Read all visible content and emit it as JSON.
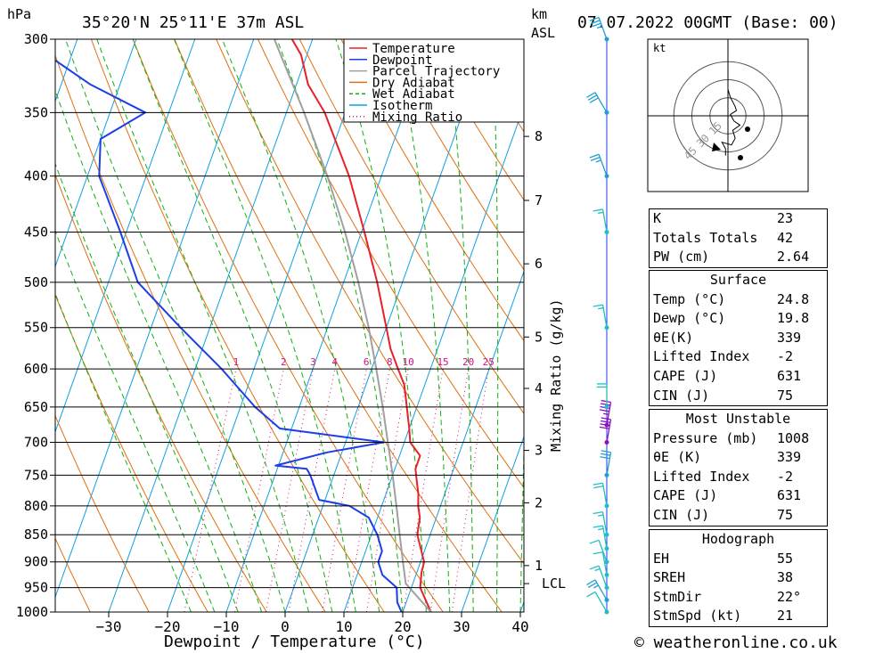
{
  "header": {
    "hpa_label": "hPa",
    "location": "35°20'N 25°11'E 37m ASL",
    "km_label": "km",
    "asl_label": "ASL",
    "datetime": "07.07.2022 00GMT (Base: 00)"
  },
  "footer": {
    "xlabel": "Dewpoint / Temperature (°C)",
    "credit": "© weatheronline.co.uk"
  },
  "hodograph": {
    "unit_label": "kt",
    "ring_labels": [
      "15",
      "30",
      "45"
    ],
    "points": [
      [
        0,
        -20
      ],
      [
        2,
        -14
      ],
      [
        6,
        -7
      ],
      [
        7,
        -4
      ],
      [
        2,
        -1
      ],
      [
        5,
        4
      ],
      [
        10,
        7
      ],
      [
        4,
        11
      ],
      [
        6,
        17
      ],
      [
        3,
        22
      ],
      [
        -5,
        20
      ],
      [
        -2,
        25
      ],
      [
        -2,
        30
      ]
    ]
  },
  "legend": [
    {
      "label": "Temperature",
      "color": "#e8202a",
      "dash": "solid"
    },
    {
      "label": "Dewpoint",
      "color": "#1c3ee8",
      "dash": "solid"
    },
    {
      "label": "Parcel Trajectory",
      "color": "#a0a0a0",
      "dash": "solid"
    },
    {
      "label": "Dry Adiabat",
      "color": "#e07010",
      "dash": "solid"
    },
    {
      "label": "Wet Adiabat",
      "color": "#10b010",
      "dash": "dashed"
    },
    {
      "label": "Isotherm",
      "color": "#10a0e0",
      "dash": "solid"
    },
    {
      "label": "Mixing Ratio",
      "color": "#d01080",
      "dash": "dotted"
    }
  ],
  "mixing_ratio_axis_label": "Mixing Ratio (g/kg)",
  "km_ticks": [
    {
      "km": "1",
      "p": 907
    },
    {
      "km": "2",
      "p": 795
    },
    {
      "km": "3",
      "p": 712
    },
    {
      "km": "4",
      "p": 625
    },
    {
      "km": "5",
      "p": 561
    },
    {
      "km": "6",
      "p": 481
    },
    {
      "km": "7",
      "p": 421
    },
    {
      "km": "8",
      "p": 368
    }
  ],
  "lcl_label": "LCL",
  "lcl_pressure": 942,
  "stats": {
    "top": [
      {
        "label": "K",
        "value": "23"
      },
      {
        "label": "Totals Totals",
        "value": "42"
      },
      {
        "label": "PW (cm)",
        "value": "2.64"
      }
    ],
    "surface": {
      "title": "Surface",
      "rows": [
        {
          "label": "Temp (°C)",
          "value": "24.8"
        },
        {
          "label": "Dewp (°C)",
          "value": "19.8"
        },
        {
          "label": "θE(K)",
          "value": "339"
        },
        {
          "label": "Lifted Index",
          "value": "-2"
        },
        {
          "label": "CAPE (J)",
          "value": "631"
        },
        {
          "label": "CIN (J)",
          "value": "75"
        }
      ]
    },
    "most_unstable": {
      "title": "Most Unstable",
      "rows": [
        {
          "label": "Pressure (mb)",
          "value": "1008"
        },
        {
          "label": "θE (K)",
          "value": "339"
        },
        {
          "label": "Lifted Index",
          "value": "-2"
        },
        {
          "label": "CAPE (J)",
          "value": "631"
        },
        {
          "label": "CIN (J)",
          "value": "75"
        }
      ]
    },
    "hodograph": {
      "title": "Hodograph",
      "rows": [
        {
          "label": "EH",
          "value": "55"
        },
        {
          "label": "SREH",
          "value": "38"
        },
        {
          "label": "StmDir",
          "value": "22°"
        },
        {
          "label": "StmSpd (kt)",
          "value": "21"
        }
      ]
    }
  },
  "chart_data": {
    "type": "line",
    "title": "35°20'N 25°11'E 37m ASL",
    "xlabel": "Dewpoint / Temperature (°C)",
    "ylabel": "hPa",
    "xlim": [
      -40,
      40
    ],
    "ylim": [
      1000,
      300
    ],
    "x_ticks": [
      "-30",
      "-20",
      "-10",
      "0",
      "10",
      "20",
      "30",
      "40"
    ],
    "y_ticks": [
      "300",
      "350",
      "400",
      "450",
      "500",
      "550",
      "600",
      "650",
      "700",
      "750",
      "800",
      "850",
      "900",
      "950",
      "1000"
    ],
    "mixing_ratio_values": [
      "1",
      "2",
      "3",
      "4",
      "6",
      "8",
      "10",
      "15",
      "20",
      "25"
    ],
    "series": [
      {
        "name": "Temperature",
        "points": [
          [
            1000,
            24.8
          ],
          [
            980,
            23.5
          ],
          [
            950,
            21.5
          ],
          [
            920,
            20.8
          ],
          [
            900,
            20.6
          ],
          [
            880,
            19.5
          ],
          [
            850,
            17.8
          ],
          [
            820,
            17.2
          ],
          [
            800,
            16.2
          ],
          [
            780,
            15.5
          ],
          [
            760,
            14.5
          ],
          [
            740,
            13.5
          ],
          [
            720,
            13.5
          ],
          [
            700,
            11.0
          ],
          [
            680,
            10.0
          ],
          [
            650,
            8.3
          ],
          [
            620,
            6.5
          ],
          [
            600,
            4.5
          ],
          [
            575,
            2.0
          ],
          [
            550,
            0.0
          ],
          [
            500,
            -4.3
          ],
          [
            450,
            -9.5
          ],
          [
            400,
            -15.5
          ],
          [
            350,
            -23.5
          ],
          [
            330,
            -28.0
          ],
          [
            310,
            -31.0
          ],
          [
            300,
            -33.5
          ]
        ]
      },
      {
        "name": "Dewpoint",
        "points": [
          [
            1000,
            19.8
          ],
          [
            980,
            18.5
          ],
          [
            950,
            17.5
          ],
          [
            925,
            14.3
          ],
          [
            900,
            12.8
          ],
          [
            880,
            12.8
          ],
          [
            850,
            11.0
          ],
          [
            820,
            8.5
          ],
          [
            800,
            4.5
          ],
          [
            790,
            -1.0
          ],
          [
            750,
            -4.0
          ],
          [
            740,
            -5.0
          ],
          [
            735,
            -10.5
          ],
          [
            715,
            -2.5
          ],
          [
            700,
            6.5
          ],
          [
            680,
            -12.0
          ],
          [
            650,
            -17.5
          ],
          [
            600,
            -25.5
          ],
          [
            550,
            -35.0
          ],
          [
            500,
            -45.0
          ],
          [
            450,
            -51.0
          ],
          [
            400,
            -58.0
          ],
          [
            370,
            -60.0
          ],
          [
            350,
            -54.0
          ],
          [
            330,
            -65.0
          ],
          [
            300,
            -79.0
          ]
        ]
      },
      {
        "name": "Parcel Trajectory",
        "points": [
          [
            1000,
            24.8
          ],
          [
            942,
            18.8
          ],
          [
            900,
            17.0
          ],
          [
            850,
            14.8
          ],
          [
            800,
            12.5
          ],
          [
            750,
            10.0
          ],
          [
            700,
            7.2
          ],
          [
            650,
            4.2
          ],
          [
            600,
            0.8
          ],
          [
            550,
            -3.0
          ],
          [
            500,
            -7.5
          ],
          [
            450,
            -12.8
          ],
          [
            400,
            -19.2
          ],
          [
            350,
            -27.0
          ],
          [
            300,
            -36.5
          ]
        ]
      }
    ],
    "wind_profile": [
      {
        "p": 1000,
        "dir": 330,
        "kt": 10
      },
      {
        "p": 975,
        "dir": 330,
        "kt": 25
      },
      {
        "p": 950,
        "dir": 340,
        "kt": 15
      },
      {
        "p": 925,
        "dir": 350,
        "kt": 10
      },
      {
        "p": 900,
        "dir": 340,
        "kt": 10
      },
      {
        "p": 875,
        "dir": 350,
        "kt": 15
      },
      {
        "p": 850,
        "dir": 350,
        "kt": 15
      },
      {
        "p": 800,
        "dir": 350,
        "kt": 20
      },
      {
        "p": 750,
        "dir": 10,
        "kt": 30
      },
      {
        "p": 700,
        "dir": 10,
        "kt": 40
      },
      {
        "p": 675,
        "dir": 10,
        "kt": 45
      },
      {
        "p": 650,
        "dir": 0,
        "kt": 20
      },
      {
        "p": 550,
        "dir": 350,
        "kt": 15
      },
      {
        "p": 450,
        "dir": 350,
        "kt": 15
      },
      {
        "p": 400,
        "dir": 340,
        "kt": 25
      },
      {
        "p": 350,
        "dir": 330,
        "kt": 30
      },
      {
        "p": 300,
        "dir": 340,
        "kt": 35
      }
    ]
  }
}
